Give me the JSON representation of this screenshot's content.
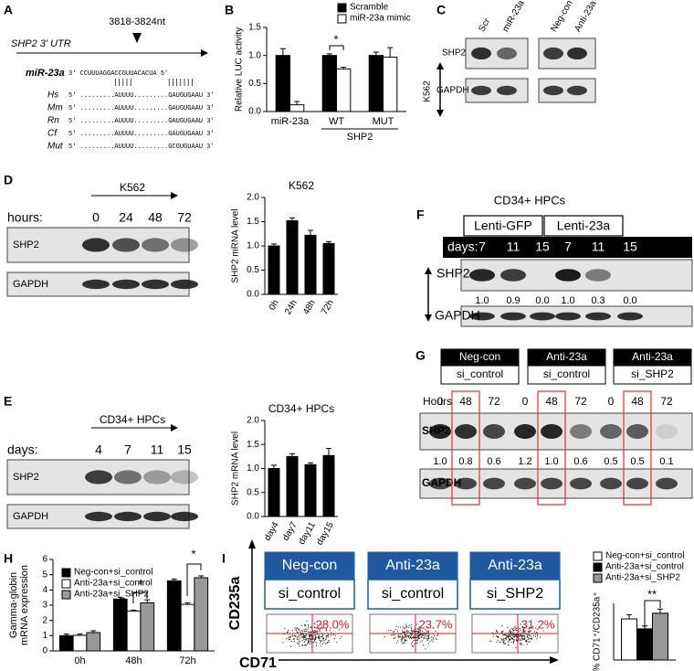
{
  "panel_labels": [
    "A",
    "B",
    "C",
    "D",
    "E",
    "F",
    "G",
    "H",
    "I"
  ],
  "panel_a": {
    "utr_label": "SHP2 3' UTR",
    "site": "3818-3824nt",
    "mirna_label": "miR-23a",
    "mirna_seq": "3' CCUUUAGGACCGUUACACUA 5'",
    "species": [
      {
        "name": "Hs",
        "seq": "5' .........AUUUU.........GAUGUGAAU 3'"
      },
      {
        "name": "Mm",
        "seq": "5' .........AUUUU.........GAUGUGAAU 3'"
      },
      {
        "name": "Rn",
        "seq": "5' .........AUUUU.........GAUGUGAAU 3'"
      },
      {
        "name": "Cf",
        "seq": "5' .........AUUUU.........GAUGUGAAU 3'"
      },
      {
        "name": "Mut",
        "seq": "5' .........AUUUU.........GCGUGUAAU 3'"
      }
    ]
  },
  "panel_c": {
    "lanes": [
      "Scr",
      "miR-23a",
      "Neg-con",
      "Anti-23a"
    ],
    "rows": [
      "SHP2",
      "GAPDH"
    ],
    "cell": "K562"
  },
  "panel_d_blot": {
    "title": "K562",
    "axis_label": "hours:",
    "lanes": [
      "0",
      "24",
      "48",
      "72"
    ],
    "rows": [
      "SHP2",
      "GAPDH"
    ]
  },
  "panel_e_blot": {
    "title": "CD34+ HPCs",
    "axis_label": "days:",
    "lanes": [
      "4",
      "7",
      "11",
      "15"
    ],
    "rows": [
      "SHP2",
      "GAPDH"
    ]
  },
  "panel_f": {
    "title": "CD34+ HPCs",
    "groups": [
      "Lenti-GFP",
      "Lenti-23a"
    ],
    "axis_label": "days:",
    "lanes": [
      "7",
      "11",
      "15",
      "7",
      "11",
      "15"
    ],
    "rows": [
      "SHP2",
      "GAPDH"
    ],
    "quant": [
      "1.0",
      "0.9",
      "0.0",
      "1.0",
      "0.3",
      "0.0"
    ]
  },
  "panel_g": {
    "groups": [
      [
        "Neg-con",
        "si_control"
      ],
      [
        "Anti-23a",
        "si_control"
      ],
      [
        "Anti-23a",
        "si_SHP2"
      ]
    ],
    "axis_label": "Hours",
    "lanes": [
      "0",
      "48",
      "72",
      "0",
      "48",
      "72",
      "0",
      "48",
      "72"
    ],
    "rows": [
      "SHP2",
      "GAPDH"
    ],
    "quant": [
      "1.0",
      "0.8",
      "0.6",
      "1.2",
      "1.0",
      "0.6",
      "0.5",
      "0.5",
      "0.1"
    ]
  },
  "panel_i_flow": {
    "headers": [
      [
        "Neg-con",
        "si_control"
      ],
      [
        "Anti-23a",
        "si_control"
      ],
      [
        "Anti-23a",
        "si_SHP2"
      ]
    ],
    "percents": [
      "28.0%",
      "23.7%",
      "31.2%"
    ],
    "x_label": "CD71",
    "y_label": "CD235a"
  },
  "chart_data": [
    {
      "type": "bar",
      "y_label": "Relative LUC activity",
      "categories": [
        "miR-23a",
        "WT",
        "MUT"
      ],
      "group_label": "SHP2",
      "series": [
        {
          "name": "Scramble",
          "color": "#000000",
          "values": [
            1.0,
            1.0,
            1.0
          ],
          "errors": [
            0.12,
            0.03,
            0.06
          ]
        },
        {
          "name": "miR-23a mimic",
          "color": "#ffffff",
          "values": [
            0.12,
            0.76,
            0.97
          ],
          "errors": [
            0.06,
            0.03,
            0.17
          ]
        }
      ],
      "ylim": [
        0,
        1.5
      ],
      "yticks": [
        {
          "value": 0,
          "label": "0.0"
        },
        {
          "value": 0.5,
          "label": "0.5"
        },
        {
          "value": 1,
          "label": "1.0"
        },
        {
          "value": 1.5,
          "label": "1.5"
        }
      ],
      "annotations": [
        "*"
      ]
    },
    {
      "type": "bar",
      "title": "K562",
      "y_label": "SHP2 mRNA level",
      "categories": [
        "0h",
        "24h",
        "48h",
        "72h"
      ],
      "values": [
        1.0,
        1.52,
        1.22,
        1.05
      ],
      "errors": [
        0.04,
        0.06,
        0.1,
        0.04
      ],
      "color": "#000000",
      "ylim": [
        0,
        2
      ],
      "yticks": [
        {
          "value": 0,
          "label": "0.0"
        },
        {
          "value": 0.5,
          "label": "0.5"
        },
        {
          "value": 1,
          "label": "1.0"
        },
        {
          "value": 1.5,
          "label": "1.5"
        },
        {
          "value": 2,
          "label": "2.0"
        }
      ]
    },
    {
      "type": "bar",
      "title": "CD34+ HPCs",
      "y_label": "SHP2 mRNA level",
      "categories": [
        "day4",
        "day7",
        "day11",
        "day15"
      ],
      "values": [
        1.0,
        1.25,
        1.08,
        1.27
      ],
      "errors": [
        0.07,
        0.06,
        0.04,
        0.15
      ],
      "color": "#000000",
      "ylim": [
        0,
        2
      ],
      "yticks": [
        {
          "value": 0,
          "label": "0.0"
        },
        {
          "value": 0.5,
          "label": "0.5"
        },
        {
          "value": 1,
          "label": "1.0"
        },
        {
          "value": 1.5,
          "label": "1.5"
        },
        {
          "value": 2,
          "label": "2.0"
        }
      ]
    },
    {
      "type": "bar",
      "y_label": [
        "Gamma-globin",
        "mRNA expression"
      ],
      "categories": [
        "0h",
        "48h",
        "72h"
      ],
      "series": [
        {
          "name": "Neg-con+si_control",
          "color": "#000000",
          "values": [
            1.0,
            3.4,
            4.6
          ],
          "errors": [
            0.1,
            0.12,
            0.12
          ]
        },
        {
          "name": "Anti-23a+si_control",
          "color": "#ffffff",
          "values": [
            1.02,
            2.62,
            3.05
          ],
          "errors": [
            0.08,
            0.06,
            0.1
          ]
        },
        {
          "name": "Anti-23a+si_SHP2",
          "color": "#999999",
          "values": [
            1.2,
            3.15,
            4.8
          ],
          "errors": [
            0.12,
            0.2,
            0.12
          ]
        }
      ],
      "ylim": [
        0,
        6
      ],
      "yticks": [
        0,
        1,
        2,
        3,
        4,
        5,
        6
      ],
      "annotations": [
        "*",
        "*"
      ]
    },
    {
      "type": "bar",
      "y_label": "% CD71⁺/CD235a⁺",
      "categories": [
        null
      ],
      "series": [
        {
          "name": "Neg-con+si_control",
          "color": "#ffffff",
          "values": [
            29
          ],
          "errors": [
            3
          ]
        },
        {
          "name": "Anti-23a+si_control",
          "color": "#000000",
          "values": [
            22
          ],
          "errors": [
            2
          ]
        },
        {
          "name": "Anti-23a+si_SHP2",
          "color": "#999999",
          "values": [
            33
          ],
          "errors": [
            3
          ]
        }
      ],
      "ylim": [
        0,
        40
      ],
      "annotations": [
        "**"
      ]
    }
  ]
}
